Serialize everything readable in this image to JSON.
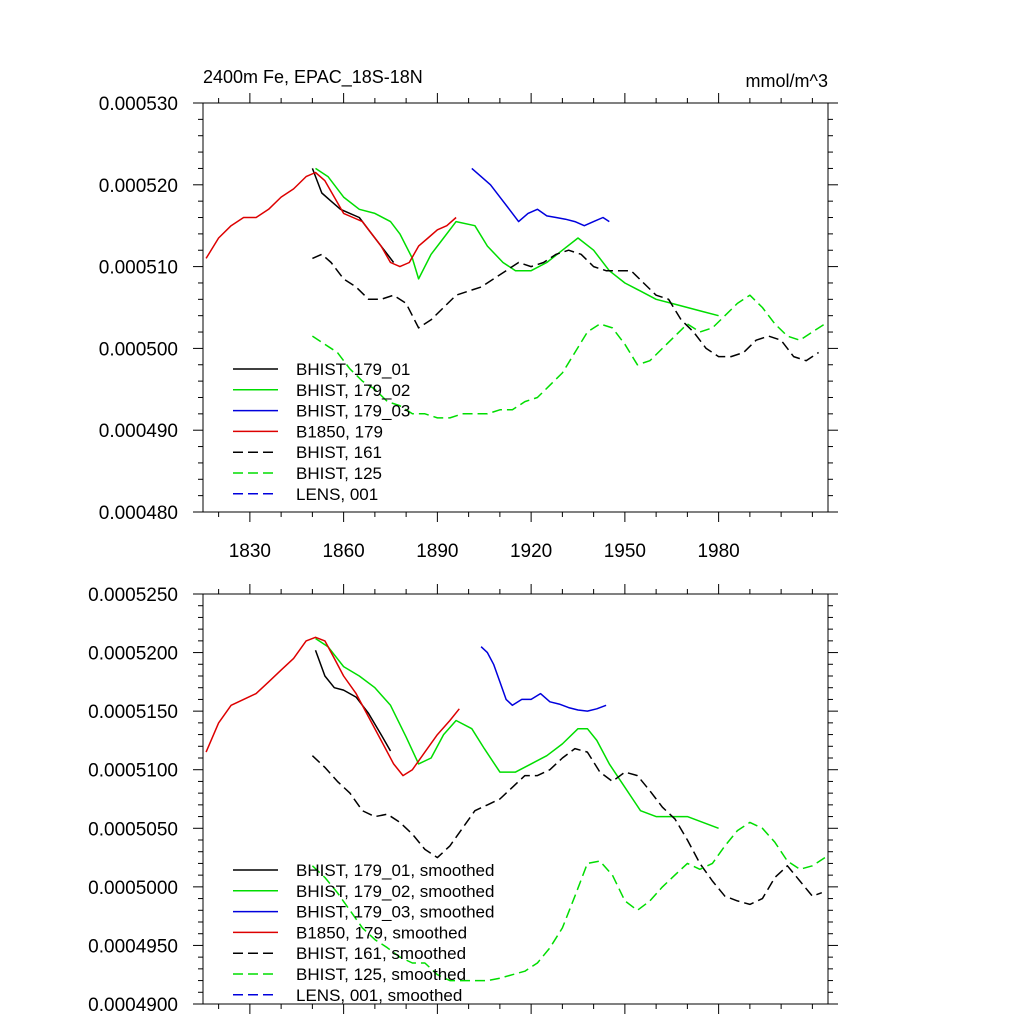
{
  "chart_data": [
    {
      "type": "line",
      "title": "2400m Fe, EPAC_18S-18N",
      "units": "mmol/m^3",
      "xlim": [
        1815,
        2015
      ],
      "ylim": [
        0.00048,
        0.00053
      ],
      "x_ticks": [
        1830,
        1860,
        1890,
        1920,
        1950,
        1980
      ],
      "x_tick_labels": [
        "1830",
        "1860",
        "1890",
        "1920",
        "1950",
        "1980"
      ],
      "y_ticks": [
        0.00048,
        0.00049,
        0.0005,
        0.00051,
        0.00052,
        0.00053
      ],
      "y_tick_labels": [
        "0.000480",
        "0.000490",
        "0.000500",
        "0.000510",
        "0.000520",
        "0.000530"
      ],
      "legend_position": "bottom-left",
      "series": [
        {
          "name": "BHIST, 179_01",
          "color": "#000000",
          "dash": "solid",
          "x": [
            1850,
            1853,
            1856,
            1859,
            1862,
            1865,
            1868,
            1871,
            1874,
            1876
          ],
          "y": [
            0.000522,
            0.000519,
            0.000518,
            0.000517,
            0.0005165,
            0.000516,
            0.0005145,
            0.000513,
            0.0005115,
            0.0005105
          ]
        },
        {
          "name": "BHIST, 179_02",
          "color": "#00dd00",
          "dash": "solid",
          "x": [
            1851,
            1855,
            1860,
            1865,
            1870,
            1875,
            1878,
            1882,
            1884,
            1888,
            1892,
            1896,
            1902,
            1906,
            1911,
            1915,
            1920,
            1925,
            1930,
            1935,
            1940,
            1945,
            1950,
            1955,
            1960,
            1965,
            1970,
            1975,
            1980
          ],
          "y": [
            0.000522,
            0.000521,
            0.0005185,
            0.000517,
            0.0005165,
            0.0005155,
            0.000514,
            0.000511,
            0.0005085,
            0.0005115,
            0.0005135,
            0.0005155,
            0.000515,
            0.0005125,
            0.0005105,
            0.0005095,
            0.0005095,
            0.0005105,
            0.000512,
            0.0005135,
            0.000512,
            0.0005095,
            0.000508,
            0.000507,
            0.000506,
            0.0005055,
            0.000505,
            0.0005045,
            0.000504
          ]
        },
        {
          "name": "BHIST, 179_03",
          "color": "#0000dd",
          "dash": "solid",
          "x": [
            1901,
            1904,
            1907,
            1910,
            1913,
            1916,
            1919,
            1922,
            1925,
            1928,
            1931,
            1934,
            1937,
            1940,
            1943,
            1945
          ],
          "y": [
            0.000522,
            0.000521,
            0.00052,
            0.0005185,
            0.000517,
            0.0005155,
            0.0005165,
            0.000517,
            0.0005162,
            0.000516,
            0.0005158,
            0.0005155,
            0.000515,
            0.0005155,
            0.000516,
            0.0005155
          ]
        },
        {
          "name": "B1850, 179",
          "color": "#dd0000",
          "dash": "solid",
          "x": [
            1816,
            1820,
            1824,
            1828,
            1832,
            1836,
            1840,
            1844,
            1848,
            1851,
            1854,
            1857,
            1860,
            1863,
            1866,
            1869,
            1872,
            1875,
            1878,
            1881,
            1884,
            1887,
            1890,
            1893,
            1896
          ],
          "y": [
            0.000511,
            0.0005135,
            0.000515,
            0.000516,
            0.000516,
            0.000517,
            0.0005185,
            0.0005195,
            0.000521,
            0.0005215,
            0.0005205,
            0.0005185,
            0.0005165,
            0.000516,
            0.0005155,
            0.000514,
            0.0005125,
            0.0005105,
            0.00051,
            0.0005105,
            0.0005125,
            0.0005135,
            0.0005145,
            0.000515,
            0.000516
          ]
        },
        {
          "name": "BHIST, 161",
          "color": "#000000",
          "dash": "dashed",
          "x": [
            1850,
            1853,
            1856,
            1860,
            1864,
            1868,
            1872,
            1876,
            1880,
            1884,
            1888,
            1892,
            1896,
            1900,
            1904,
            1908,
            1912,
            1916,
            1920,
            1924,
            1928,
            1932,
            1936,
            1940,
            1944,
            1948,
            1952,
            1956,
            1960,
            1964,
            1968,
            1972,
            1976,
            1980,
            1984,
            1988,
            1992,
            1996,
            2000,
            2004,
            2008,
            2012
          ],
          "y": [
            0.000511,
            0.0005115,
            0.0005105,
            0.0005085,
            0.0005075,
            0.000506,
            0.000506,
            0.0005065,
            0.0005055,
            0.0005025,
            0.0005035,
            0.000505,
            0.0005065,
            0.000507,
            0.0005075,
            0.0005085,
            0.0005095,
            0.0005105,
            0.00051,
            0.0005105,
            0.0005115,
            0.000512,
            0.0005115,
            0.00051,
            0.0005095,
            0.0005095,
            0.0005095,
            0.000508,
            0.0005065,
            0.000506,
            0.0005035,
            0.000502,
            0.0005,
            0.000499,
            0.000499,
            0.0004995,
            0.000501,
            0.0005015,
            0.000501,
            0.000499,
            0.0004985,
            0.0004995
          ]
        },
        {
          "name": "BHIST, 125",
          "color": "#00dd00",
          "dash": "dashed",
          "x": [
            1850,
            1854,
            1858,
            1862,
            1866,
            1870,
            1874,
            1878,
            1882,
            1886,
            1890,
            1894,
            1898,
            1902,
            1906,
            1910,
            1914,
            1918,
            1922,
            1926,
            1930,
            1934,
            1938,
            1942,
            1946,
            1950,
            1954,
            1958,
            1962,
            1966,
            1970,
            1974,
            1978,
            1982,
            1986,
            1990,
            1994,
            1998,
            2002,
            2006,
            2010,
            2014
          ],
          "y": [
            0.0005015,
            0.0005005,
            0.0004995,
            0.0004975,
            0.000496,
            0.000495,
            0.0004935,
            0.000493,
            0.000492,
            0.000492,
            0.0004915,
            0.0004915,
            0.000492,
            0.000492,
            0.000492,
            0.0004925,
            0.0004925,
            0.0004935,
            0.000494,
            0.0004955,
            0.000497,
            0.0004995,
            0.000502,
            0.000503,
            0.0005025,
            0.0005005,
            0.000498,
            0.0004985,
            0.0005,
            0.0005015,
            0.000503,
            0.000502,
            0.0005025,
            0.000504,
            0.0005055,
            0.0005065,
            0.000505,
            0.000503,
            0.0005015,
            0.000501,
            0.000502,
            0.000503
          ]
        },
        {
          "name": "LENS, 001",
          "color": "#0000dd",
          "dash": "dashed",
          "x": [],
          "y": []
        }
      ]
    },
    {
      "type": "line",
      "title": "",
      "units": "",
      "xlim": [
        1815,
        2015
      ],
      "ylim": [
        0.00049,
        0.000525
      ],
      "x_ticks": [
        1830,
        1860,
        1890,
        1920,
        1950,
        1980
      ],
      "x_tick_labels": [
        "",
        "",
        "",
        "",
        "",
        ""
      ],
      "y_ticks": [
        0.00049,
        0.000495,
        0.0005,
        0.000505,
        0.00051,
        0.000515,
        0.00052,
        0.000525
      ],
      "y_tick_labels": [
        "0.0004900",
        "0.0004950",
        "0.0005000",
        "0.0005050",
        "0.0005100",
        "0.0005150",
        "0.0005200",
        "0.0005250"
      ],
      "legend_position": "bottom-left",
      "series": [
        {
          "name": "BHIST, 179_01, smoothed",
          "color": "#000000",
          "dash": "solid",
          "x": [
            1851,
            1854,
            1857,
            1860,
            1864,
            1868,
            1872,
            1875
          ],
          "y": [
            0.0005202,
            0.000518,
            0.000517,
            0.0005168,
            0.0005162,
            0.0005148,
            0.000513,
            0.0005116
          ]
        },
        {
          "name": "BHIST, 179_02, smoothed",
          "color": "#00dd00",
          "dash": "solid",
          "x": [
            1851,
            1855,
            1860,
            1865,
            1870,
            1875,
            1880,
            1884,
            1888,
            1892,
            1896,
            1901,
            1905,
            1910,
            1915,
            1920,
            1925,
            1930,
            1935,
            1938,
            1941,
            1945,
            1950,
            1955,
            1960,
            1965,
            1970,
            1975,
            1980
          ],
          "y": [
            0.0005212,
            0.0005205,
            0.0005188,
            0.000518,
            0.000517,
            0.0005155,
            0.0005128,
            0.0005105,
            0.000511,
            0.000513,
            0.0005142,
            0.0005135,
            0.0005118,
            0.0005098,
            0.0005098,
            0.0005105,
            0.0005112,
            0.0005122,
            0.0005135,
            0.0005135,
            0.0005125,
            0.0005105,
            0.0005085,
            0.0005065,
            0.000506,
            0.000506,
            0.000506,
            0.0005055,
            0.000505
          ]
        },
        {
          "name": "BHIST, 179_03, smoothed",
          "color": "#0000dd",
          "dash": "solid",
          "x": [
            1904,
            1906,
            1908,
            1910,
            1912,
            1914,
            1917,
            1920,
            1923,
            1926,
            1929,
            1932,
            1935,
            1938,
            1941,
            1944
          ],
          "y": [
            0.0005205,
            0.00052,
            0.000519,
            0.0005175,
            0.000516,
            0.0005155,
            0.000516,
            0.000516,
            0.0005165,
            0.0005158,
            0.0005156,
            0.0005153,
            0.0005151,
            0.000515,
            0.0005152,
            0.0005155
          ]
        },
        {
          "name": "B1850, 179, smoothed",
          "color": "#dd0000",
          "dash": "solid",
          "x": [
            1816,
            1820,
            1824,
            1828,
            1832,
            1836,
            1840,
            1844,
            1848,
            1851,
            1854,
            1857,
            1860,
            1864,
            1868,
            1872,
            1876,
            1879,
            1882,
            1886,
            1890,
            1894,
            1897
          ],
          "y": [
            0.0005115,
            0.000514,
            0.0005155,
            0.000516,
            0.0005165,
            0.0005175,
            0.0005185,
            0.0005195,
            0.000521,
            0.0005213,
            0.000521,
            0.0005195,
            0.000518,
            0.0005165,
            0.0005145,
            0.0005125,
            0.0005105,
            0.0005095,
            0.00051,
            0.0005115,
            0.000513,
            0.0005142,
            0.0005152
          ]
        },
        {
          "name": "BHIST, 161, smoothed",
          "color": "#000000",
          "dash": "dashed",
          "x": [
            1850,
            1854,
            1858,
            1862,
            1866,
            1870,
            1874,
            1878,
            1882,
            1886,
            1890,
            1894,
            1898,
            1902,
            1906,
            1910,
            1914,
            1918,
            1922,
            1926,
            1930,
            1934,
            1938,
            1942,
            1946,
            1950,
            1954,
            1958,
            1962,
            1966,
            1970,
            1974,
            1978,
            1982,
            1986,
            1990,
            1994,
            1998,
            2002,
            2006,
            2010,
            2013
          ],
          "y": [
            0.0005112,
            0.0005102,
            0.000509,
            0.000508,
            0.0005065,
            0.000506,
            0.0005062,
            0.0005055,
            0.0005045,
            0.0005032,
            0.0005025,
            0.0005035,
            0.000505,
            0.0005065,
            0.000507,
            0.0005075,
            0.0005085,
            0.0005095,
            0.0005095,
            0.00051,
            0.000511,
            0.0005118,
            0.0005115,
            0.0005098,
            0.000509,
            0.0005098,
            0.0005095,
            0.0005082,
            0.0005068,
            0.0005058,
            0.000504,
            0.000502,
            0.0005005,
            0.0004992,
            0.0004988,
            0.0004985,
            0.000499,
            0.0005008,
            0.0005018,
            0.0005005,
            0.0004992,
            0.0004995
          ]
        },
        {
          "name": "BHIST, 125, smoothed",
          "color": "#00dd00",
          "dash": "dashed",
          "x": [
            1850,
            1854,
            1858,
            1862,
            1866,
            1870,
            1874,
            1878,
            1882,
            1886,
            1890,
            1894,
            1898,
            1902,
            1906,
            1910,
            1914,
            1918,
            1922,
            1926,
            1930,
            1934,
            1938,
            1942,
            1946,
            1950,
            1954,
            1958,
            1962,
            1966,
            1970,
            1974,
            1978,
            1982,
            1986,
            1990,
            1994,
            1998,
            2002,
            2006,
            2010,
            2014
          ],
          "y": [
            0.0005018,
            0.0005008,
            0.0004995,
            0.000498,
            0.0004965,
            0.0004955,
            0.0004948,
            0.000494,
            0.0004935,
            0.0004935,
            0.0004925,
            0.000492,
            0.000492,
            0.000492,
            0.000492,
            0.0004922,
            0.0004925,
            0.0004928,
            0.0004935,
            0.0004948,
            0.0004965,
            0.0004992,
            0.000502,
            0.0005022,
            0.000501,
            0.0004988,
            0.000498,
            0.0004988,
            0.0005,
            0.000501,
            0.000502,
            0.0005015,
            0.000502,
            0.0005035,
            0.0005048,
            0.0005055,
            0.000505,
            0.0005038,
            0.0005022,
            0.0005015,
            0.0005018,
            0.0005025
          ]
        },
        {
          "name": "LENS, 001, smoothed",
          "color": "#0000dd",
          "dash": "dashed",
          "x": [],
          "y": []
        }
      ]
    }
  ]
}
